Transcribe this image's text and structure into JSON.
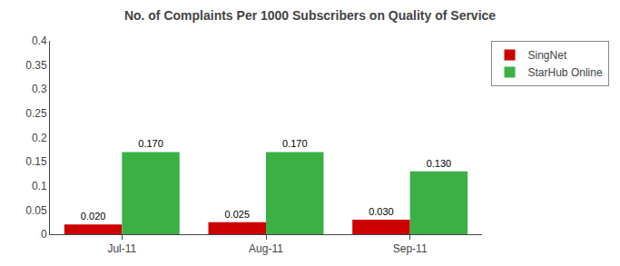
{
  "chart_data": {
    "type": "bar",
    "title": "No. of Complaints Per 1000 Subscribers on Quality of Service",
    "categories": [
      "Jul-11",
      "Aug-11",
      "Sep-11"
    ],
    "series": [
      {
        "name": "SingNet",
        "color": "#cc0000",
        "values": [
          0.02,
          0.025,
          0.03
        ],
        "value_labels": [
          "0.020",
          "0.025",
          "0.030"
        ]
      },
      {
        "name": "StarHub Online",
        "color": "#3cb045",
        "values": [
          0.17,
          0.17,
          0.13
        ],
        "value_labels": [
          "0.170",
          "0.170",
          "0.130"
        ]
      }
    ],
    "ylim": [
      0,
      0.4
    ],
    "yticks": [
      0,
      0.05,
      0.1,
      0.15,
      0.2,
      0.25,
      0.3,
      0.35,
      0.4
    ],
    "grid": false,
    "legend": "upper right",
    "data_labels": true
  }
}
